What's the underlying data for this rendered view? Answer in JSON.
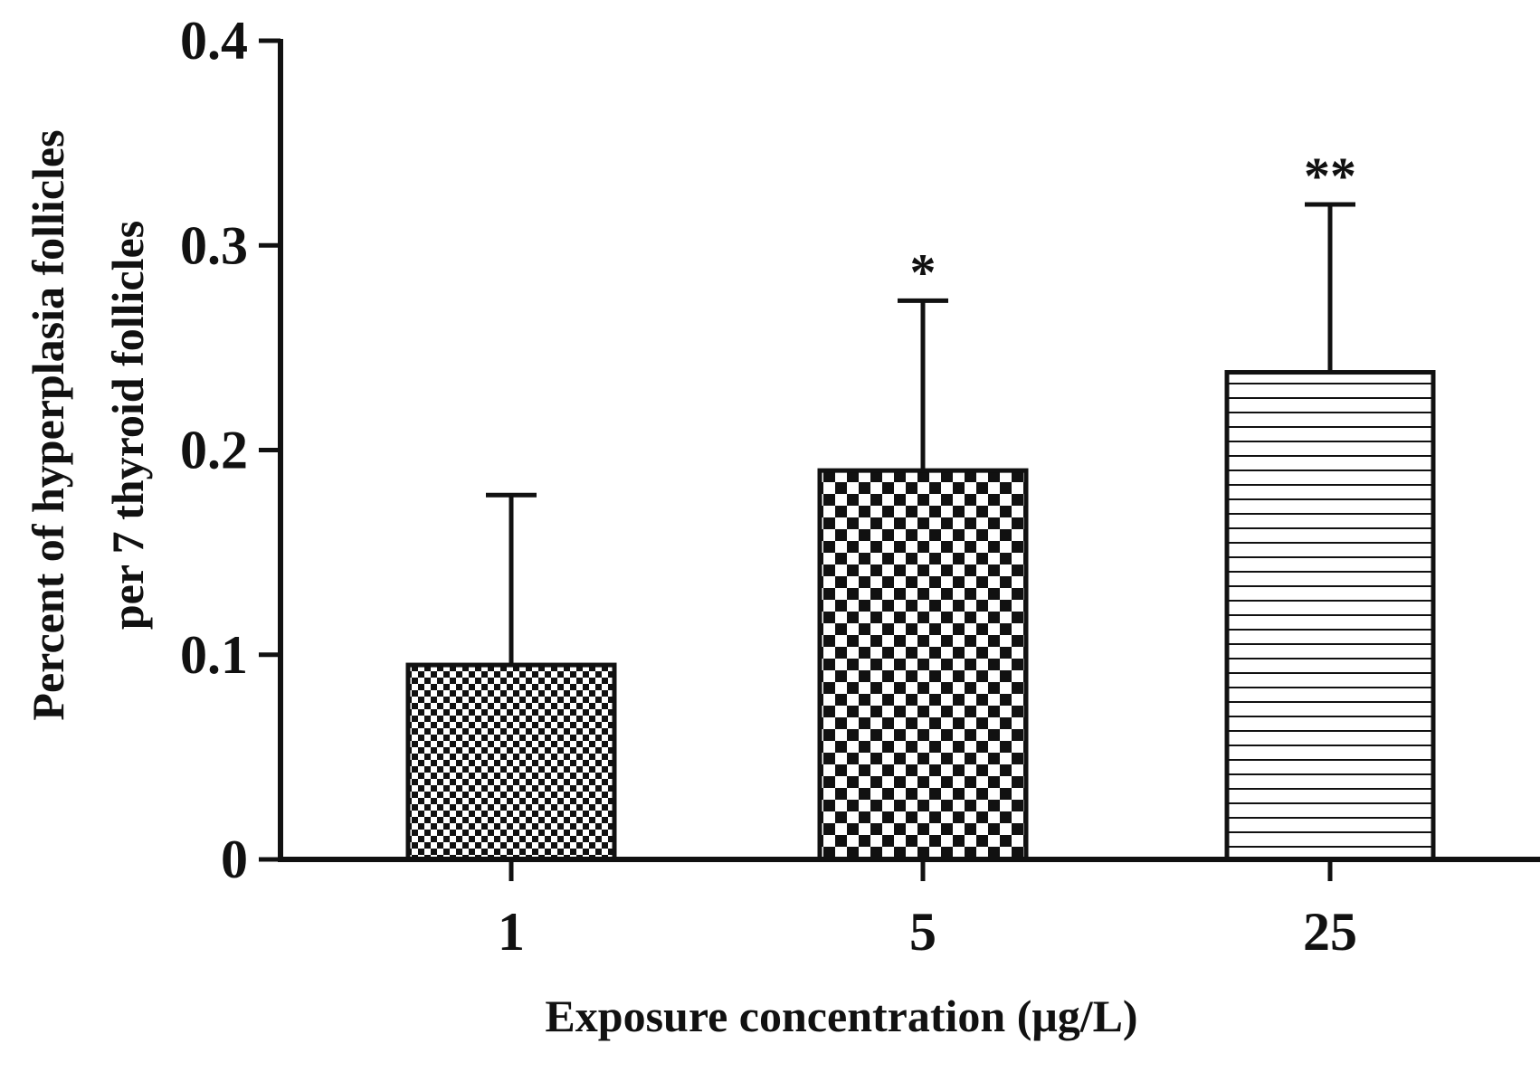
{
  "chart_data": {
    "type": "bar",
    "categories": [
      "1",
      "5",
      "25"
    ],
    "values": [
      0.095,
      0.19,
      0.238
    ],
    "error_upper": [
      0.178,
      0.273,
      0.32
    ],
    "significance": [
      "",
      "*",
      "**"
    ],
    "patterns": [
      "fine-checker",
      "coarse-checker",
      "horizontal-lines"
    ],
    "xlabel": "Exposure concentration (μg/L)",
    "ylabel_line1": "Percent of hyperplasia follicles",
    "ylabel_line2": "per 7 thyroid follicles",
    "ylim": [
      0,
      0.4
    ],
    "yticks": [
      0,
      0.1,
      0.2,
      0.3,
      0.4
    ],
    "ytick_labels": [
      "0",
      "0.1",
      "0.2",
      "0.3",
      "0.4"
    ],
    "grid": false,
    "colors": {
      "ink": "#111111",
      "background": "#ffffff"
    }
  }
}
